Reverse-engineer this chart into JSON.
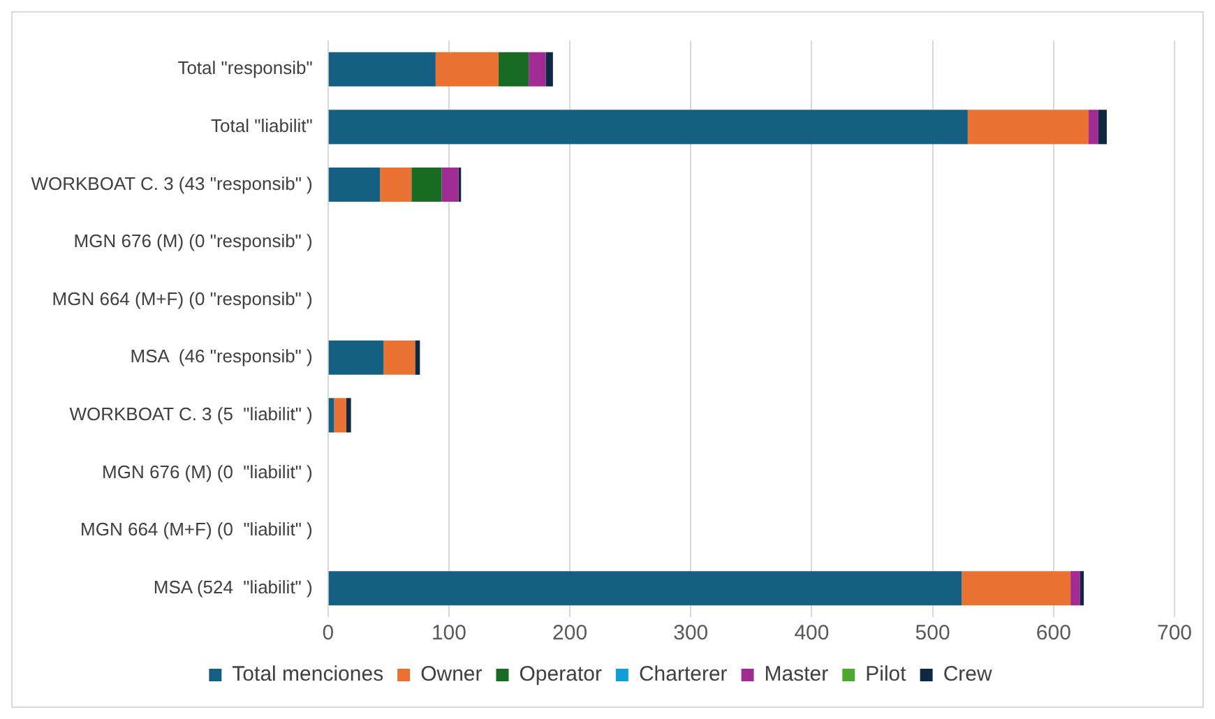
{
  "chart_data": {
    "type": "bar",
    "orientation": "horizontal",
    "stacked": true,
    "categories": [
      "Total \"responsib\"",
      "Total \"liabilit\"",
      "WORKBOAT C. 3 (43 \"responsib\" )",
      "MGN 676 (M) (0 \"responsib\" )",
      "MGN 664 (M+F) (0 \"responsib\" )",
      "MSA  (46 \"responsib\" )",
      "WORKBOAT C. 3 (5  \"liabilit\" )",
      "MGN 676 (M) (0  \"liabilit\" )",
      "MGN 664 (M+F) (0  \"liabilit\" )",
      "MSA (524  \"liabilit\" )"
    ],
    "series": [
      {
        "name": "Total menciones",
        "color": "#156082",
        "values": [
          89,
          529,
          43,
          0,
          0,
          46,
          5,
          0,
          0,
          524
        ]
      },
      {
        "name": "Owner",
        "color": "#e97132",
        "values": [
          52,
          100,
          26,
          0,
          0,
          26,
          10,
          0,
          0,
          90
        ]
      },
      {
        "name": "Operator",
        "color": "#196b24",
        "values": [
          25,
          0,
          25,
          0,
          0,
          0,
          0,
          0,
          0,
          0
        ]
      },
      {
        "name": "Charterer",
        "color": "#0f9ed5",
        "values": [
          0,
          0,
          0,
          0,
          0,
          0,
          0,
          0,
          0,
          0
        ]
      },
      {
        "name": "Master",
        "color": "#a02b93",
        "values": [
          14,
          8,
          14,
          0,
          0,
          0,
          0,
          0,
          0,
          8
        ]
      },
      {
        "name": "Pilot",
        "color": "#4ea72e",
        "values": [
          0,
          0,
          0,
          0,
          0,
          0,
          0,
          0,
          0,
          0
        ]
      },
      {
        "name": "Crew",
        "color": "#0e2841",
        "values": [
          6,
          7,
          2,
          0,
          0,
          4,
          4,
          0,
          0,
          3
        ]
      }
    ],
    "xlim": [
      0,
      700
    ],
    "xticks": [
      0,
      100,
      200,
      300,
      400,
      500,
      600,
      700
    ],
    "grid": "x",
    "legend": "bottom"
  }
}
